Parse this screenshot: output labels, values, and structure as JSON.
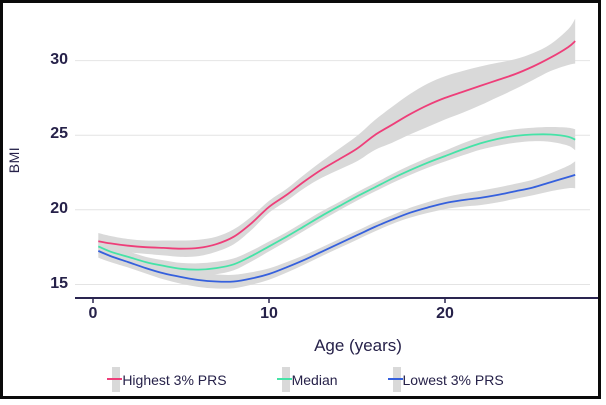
{
  "chart_data": {
    "type": "line",
    "title": "",
    "xlabel": "Age (years)",
    "ylabel": "BMI",
    "x": [
      0.3,
      1,
      2,
      3,
      4,
      5,
      6,
      7,
      8,
      9,
      10,
      11,
      12,
      13,
      14,
      15,
      16,
      17,
      18,
      19,
      20,
      21,
      22,
      23,
      24,
      25,
      26,
      27,
      27.4
    ],
    "xticks": [
      0,
      10,
      20
    ],
    "yticks": [
      15,
      20,
      25,
      30
    ],
    "xlim": [
      -1,
      28.7
    ],
    "ylim": [
      14.2,
      32.9
    ],
    "grid": "horizontal",
    "legend_position": "bottom",
    "band_color": "#d9d9d9",
    "grid_color": "#e4e4e4",
    "axis_color": "#2a2550",
    "text_color": "#262149",
    "series": [
      {
        "name": "Highest 3% PRS",
        "color": "#ee3e79",
        "values": [
          17.9,
          17.75,
          17.6,
          17.5,
          17.45,
          17.4,
          17.45,
          17.7,
          18.2,
          19.1,
          20.2,
          21.0,
          21.9,
          22.7,
          23.4,
          24.1,
          25.0,
          25.7,
          26.4,
          27.0,
          27.5,
          27.9,
          28.3,
          28.7,
          29.1,
          29.6,
          30.2,
          30.9,
          31.3
        ],
        "band_halfwidth": [
          0.55,
          0.5,
          0.45,
          0.45,
          0.5,
          0.55,
          0.55,
          0.5,
          0.5,
          0.45,
          0.4,
          0.4,
          0.45,
          0.55,
          0.7,
          0.85,
          1.0,
          1.2,
          1.35,
          1.45,
          1.45,
          1.4,
          1.3,
          1.15,
          1.0,
          0.9,
          0.9,
          1.2,
          1.5
        ]
      },
      {
        "name": "Median",
        "color": "#45e3a7",
        "values": [
          17.55,
          17.2,
          16.85,
          16.5,
          16.25,
          16.05,
          16.0,
          16.1,
          16.35,
          16.9,
          17.55,
          18.2,
          18.9,
          19.6,
          20.25,
          20.9,
          21.5,
          22.1,
          22.65,
          23.15,
          23.6,
          24.05,
          24.45,
          24.75,
          24.95,
          25.05,
          25.05,
          24.9,
          24.7
        ],
        "band_halfwidth": [
          0.5,
          0.42,
          0.38,
          0.35,
          0.38,
          0.4,
          0.42,
          0.42,
          0.4,
          0.36,
          0.33,
          0.3,
          0.3,
          0.3,
          0.28,
          0.28,
          0.28,
          0.3,
          0.32,
          0.34,
          0.36,
          0.4,
          0.42,
          0.45,
          0.45,
          0.45,
          0.5,
          0.6,
          0.7
        ]
      },
      {
        "name": "Lowest 3% PRS",
        "color": "#3560dd",
        "values": [
          17.25,
          16.9,
          16.5,
          16.1,
          15.75,
          15.5,
          15.3,
          15.2,
          15.2,
          15.4,
          15.7,
          16.15,
          16.65,
          17.2,
          17.75,
          18.3,
          18.85,
          19.35,
          19.8,
          20.15,
          20.45,
          20.65,
          20.8,
          21.0,
          21.25,
          21.5,
          21.85,
          22.2,
          22.35
        ],
        "band_halfwidth": [
          0.45,
          0.4,
          0.36,
          0.36,
          0.4,
          0.45,
          0.47,
          0.47,
          0.45,
          0.42,
          0.38,
          0.35,
          0.32,
          0.3,
          0.3,
          0.3,
          0.3,
          0.3,
          0.33,
          0.36,
          0.4,
          0.44,
          0.48,
          0.5,
          0.5,
          0.52,
          0.6,
          0.75,
          0.9
        ]
      }
    ]
  }
}
